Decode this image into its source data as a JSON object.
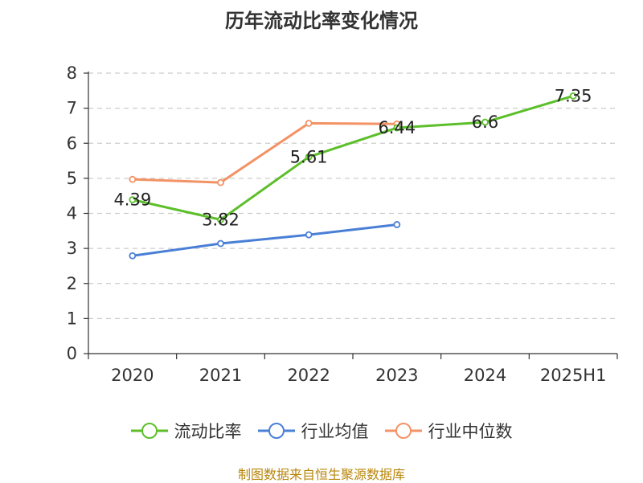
{
  "title": "历年流动比率变化情况",
  "source": "制图数据来自恒生聚源数据库",
  "colors": {
    "current_ratio": "#5cbf2a",
    "industry_mean": "#4a7fd6",
    "industry_median": "#f39264",
    "grid": "#cccccc",
    "axis": "#333333",
    "source_text": "#b8860b"
  },
  "chart_data": {
    "type": "line",
    "title": "历年流动比率变化情况",
    "categories": [
      "2020",
      "2021",
      "2022",
      "2023",
      "2024",
      "2025H1"
    ],
    "ylim": [
      0,
      8
    ],
    "yticks": [
      "0",
      "1",
      "2",
      "3",
      "4",
      "5",
      "6",
      "7",
      "8"
    ],
    "grid": true,
    "legend_position": "bottom",
    "series": [
      {
        "name": "流动比率",
        "color": "#5cbf2a",
        "values": [
          4.39,
          3.82,
          5.61,
          6.44,
          6.6,
          7.35
        ],
        "labels": [
          "4.39",
          "3.82",
          "5.61",
          "6.44",
          "6.6",
          "7.35"
        ]
      },
      {
        "name": "行业均值",
        "color": "#4a7fd6",
        "values": [
          2.79,
          3.14,
          3.39,
          3.68,
          null,
          null
        ]
      },
      {
        "name": "行业中位数",
        "color": "#f39264",
        "values": [
          4.97,
          4.88,
          6.57,
          6.55,
          null,
          null
        ]
      }
    ]
  }
}
